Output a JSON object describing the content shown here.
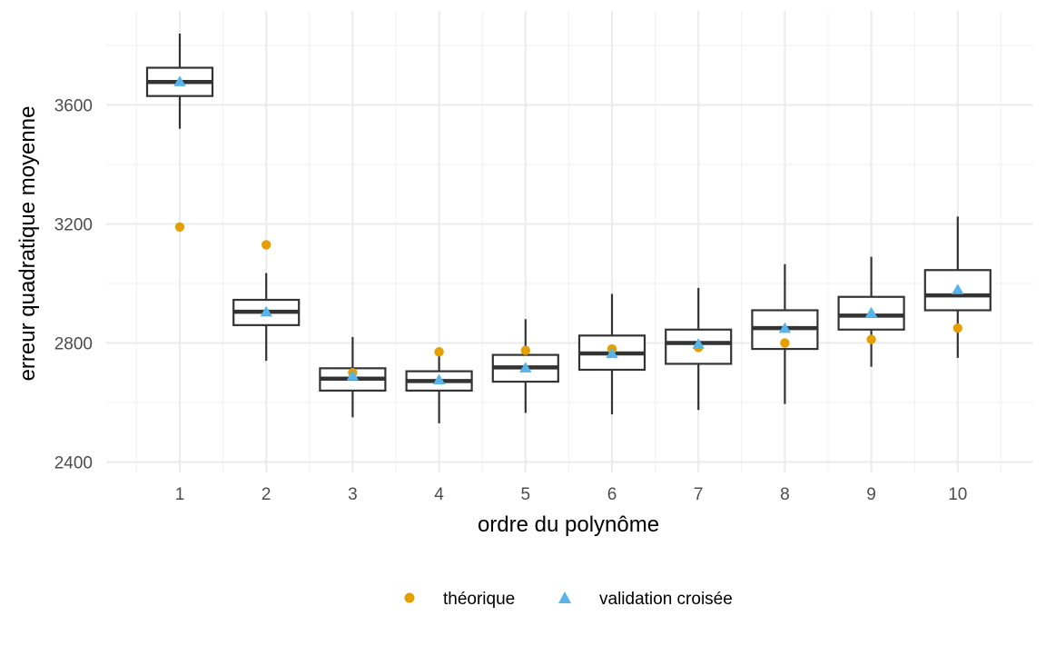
{
  "chart_data": {
    "type": "boxplot",
    "title": "",
    "xlabel": "ordre du polynôme",
    "ylabel": "erreur quadratique moyenne",
    "categories": [
      "1",
      "2",
      "3",
      "4",
      "5",
      "6",
      "7",
      "8",
      "9",
      "10"
    ],
    "yticks": [
      2400,
      2800,
      3200,
      3600
    ],
    "ylim": [
      2380,
      3850
    ],
    "grid": true,
    "legend_position": "bottom",
    "boxes": [
      {
        "x": "1",
        "whisker_low": 3520,
        "q1": 3630,
        "median": 3677,
        "q3": 3725,
        "whisker_high": 3840
      },
      {
        "x": "2",
        "whisker_low": 2740,
        "q1": 2860,
        "median": 2905,
        "q3": 2945,
        "whisker_high": 3035
      },
      {
        "x": "3",
        "whisker_low": 2550,
        "q1": 2640,
        "median": 2680,
        "q3": 2715,
        "whisker_high": 2820
      },
      {
        "x": "4",
        "whisker_low": 2530,
        "q1": 2640,
        "median": 2672,
        "q3": 2705,
        "whisker_high": 2785
      },
      {
        "x": "5",
        "whisker_low": 2565,
        "q1": 2670,
        "median": 2718,
        "q3": 2760,
        "whisker_high": 2880
      },
      {
        "x": "6",
        "whisker_low": 2560,
        "q1": 2710,
        "median": 2765,
        "q3": 2825,
        "whisker_high": 2965
      },
      {
        "x": "7",
        "whisker_low": 2575,
        "q1": 2730,
        "median": 2800,
        "q3": 2845,
        "whisker_high": 2985
      },
      {
        "x": "8",
        "whisker_low": 2595,
        "q1": 2780,
        "median": 2850,
        "q3": 2910,
        "whisker_high": 3065
      },
      {
        "x": "9",
        "whisker_low": 2720,
        "q1": 2845,
        "median": 2892,
        "q3": 2955,
        "whisker_high": 3090
      },
      {
        "x": "10",
        "whisker_low": 2750,
        "q1": 2910,
        "median": 2960,
        "q3": 3045,
        "whisker_high": 3225
      }
    ],
    "series": [
      {
        "name": "théorique",
        "marker": "circle",
        "color": "#E69F00",
        "values": [
          3190,
          3130,
          2700,
          2770,
          2775,
          2780,
          2785,
          2800,
          2812,
          2850
        ]
      },
      {
        "name": "validation croisée",
        "marker": "triangle",
        "color": "#56B4E9",
        "values": [
          3677,
          2903,
          2688,
          2675,
          2715,
          2763,
          2795,
          2848,
          2900,
          2978
        ]
      }
    ]
  }
}
